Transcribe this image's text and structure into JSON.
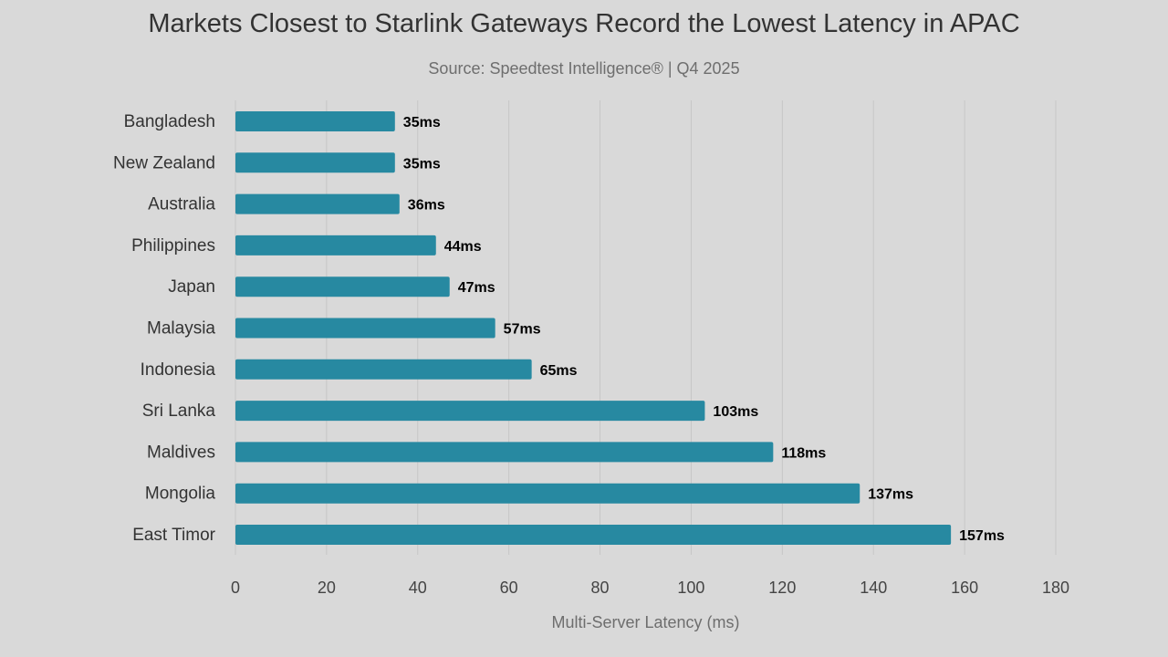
{
  "chart_data": {
    "type": "bar",
    "orientation": "horizontal",
    "title": "Markets Closest to Starlink Gateways Record the Lowest Latency in APAC",
    "subtitle": "Source: Speedtest Intelligence® | Q4 2025",
    "xlabel": "Multi-Server Latency (ms)",
    "ylabel": "",
    "xlim": [
      0,
      180
    ],
    "xticks": [
      "0",
      "20",
      "40",
      "60",
      "80",
      "100",
      "120",
      "140",
      "160",
      "180"
    ],
    "grid": true,
    "bar_color": "#2789a1",
    "categories": [
      "Bangladesh",
      "New Zealand",
      "Australia",
      "Philippines",
      "Japan",
      "Malaysia",
      "Indonesia",
      "Sri Lanka",
      "Maldives",
      "Mongolia",
      "East Timor"
    ],
    "values": [
      35,
      35,
      36,
      44,
      47,
      57,
      65,
      103,
      118,
      137,
      157
    ],
    "data_labels": [
      "35ms",
      "35ms",
      "36ms",
      "44ms",
      "47ms",
      "57ms",
      "65ms",
      "103ms",
      "118ms",
      "137ms",
      "157ms"
    ]
  }
}
